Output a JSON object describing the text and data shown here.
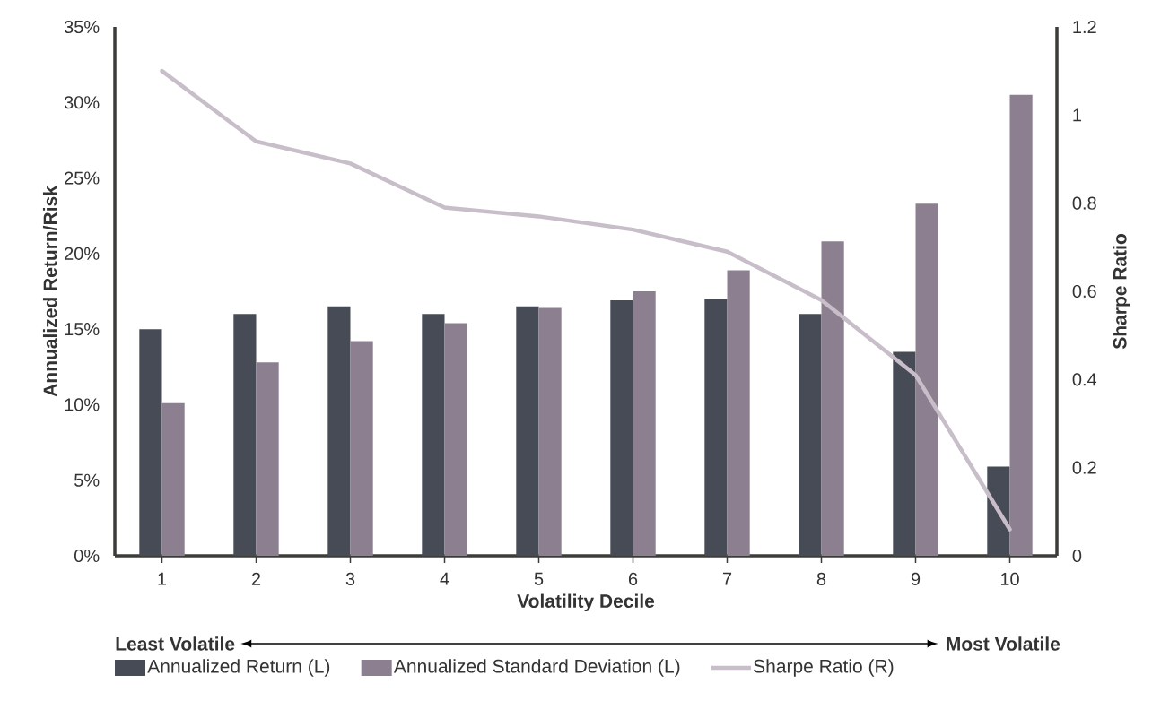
{
  "chart_data": {
    "type": "bar",
    "xlabel": "Volatility Decile",
    "ylabel": "Annualized Return/Risk",
    "y2label": "Sharpe Ratio",
    "categories": [
      "1",
      "2",
      "3",
      "4",
      "5",
      "6",
      "7",
      "8",
      "9",
      "10"
    ],
    "series": [
      {
        "name": "Annualized Return (L)",
        "color": "#464b55",
        "values": [
          15.0,
          16.0,
          16.5,
          16.0,
          16.5,
          16.9,
          17.0,
          16.0,
          13.5,
          5.9
        ]
      },
      {
        "name": "Annualized Standard Deviation (L)",
        "color": "#8c8090",
        "values": [
          10.1,
          12.8,
          14.2,
          15.4,
          16.4,
          17.5,
          18.9,
          20.8,
          23.3,
          30.5
        ]
      },
      {
        "name": "Sharpe Ratio (R)",
        "type": "line",
        "axis": "y2",
        "color": "#c7bec9",
        "values": [
          1.1,
          0.94,
          0.89,
          0.79,
          0.77,
          0.74,
          0.69,
          0.58,
          0.41,
          0.06
        ]
      }
    ],
    "ylim": [
      0,
      35
    ],
    "yticks": [
      {
        "value": 0,
        "label": "0%"
      },
      {
        "value": 5,
        "label": "5%"
      },
      {
        "value": 10,
        "label": "10%"
      },
      {
        "value": 15,
        "label": "15%"
      },
      {
        "value": 20,
        "label": "20%"
      },
      {
        "value": 25,
        "label": "25%"
      },
      {
        "value": 30,
        "label": "30%"
      },
      {
        "value": 35,
        "label": "35%"
      }
    ],
    "y2lim": [
      0,
      1.2
    ],
    "y2ticks": [
      0,
      0.2,
      0.4,
      0.6,
      0.8,
      1,
      1.2
    ],
    "annotations": [
      "Least Volatile",
      "Most Volatile"
    ],
    "legend": "bottom",
    "grid": false
  }
}
